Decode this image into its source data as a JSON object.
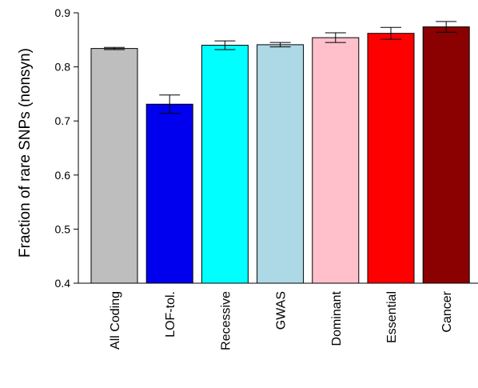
{
  "chart_data": {
    "type": "bar",
    "title": "",
    "xlabel": "",
    "ylabel": "Fraction of rare SNPs (nonsyn)",
    "ylim": [
      0.4,
      0.9
    ],
    "yticks": [
      0.4,
      0.5,
      0.6,
      0.7,
      0.8,
      0.9
    ],
    "grid": false,
    "legend": "none",
    "categories": [
      "All Coding",
      "LOF-tol.",
      "Recessive",
      "GWAS",
      "Dominant",
      "Essential",
      "Cancer"
    ],
    "values": [
      0.834,
      0.731,
      0.84,
      0.841,
      0.854,
      0.862,
      0.874
    ],
    "error": [
      0.002,
      0.017,
      0.008,
      0.004,
      0.009,
      0.011,
      0.01
    ],
    "colors": [
      "#bebebe",
      "#0000ee",
      "#00ffff",
      "#add8e6",
      "#ffc0cb",
      "#ff0000",
      "#8b0000"
    ]
  }
}
